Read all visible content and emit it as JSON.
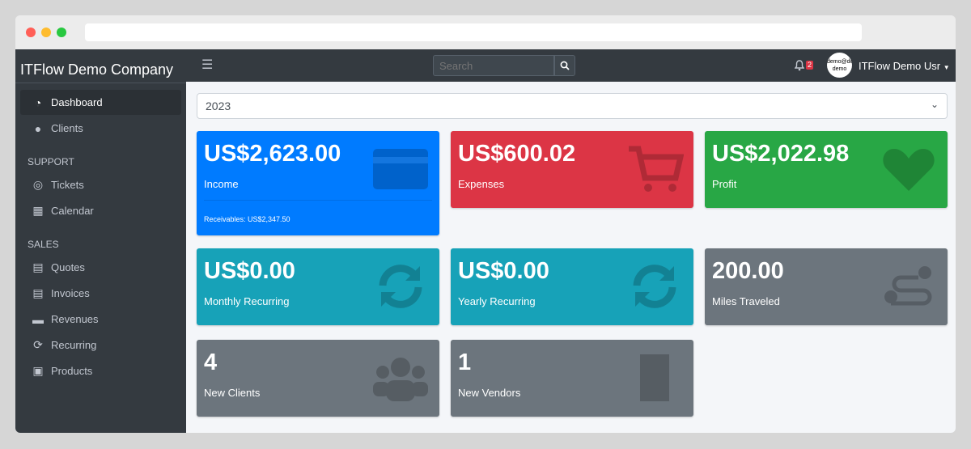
{
  "app": {
    "company": "ITFlow Demo Company"
  },
  "sidebar": {
    "items": [
      {
        "label": "Dashboard",
        "icon": "tachometer-icon",
        "active": true
      },
      {
        "label": "Clients",
        "icon": "users-icon"
      }
    ],
    "support_header": "SUPPORT",
    "support": [
      {
        "label": "Tickets",
        "icon": "life-ring-icon"
      },
      {
        "label": "Calendar",
        "icon": "calendar-icon"
      }
    ],
    "sales_header": "SALES",
    "sales": [
      {
        "label": "Quotes",
        "icon": "file-icon"
      },
      {
        "label": "Invoices",
        "icon": "invoice-icon"
      },
      {
        "label": "Revenues",
        "icon": "credit-card-icon"
      },
      {
        "label": "Recurring",
        "icon": "sync-icon"
      },
      {
        "label": "Products",
        "icon": "box-icon"
      }
    ]
  },
  "topbar": {
    "search_placeholder": "Search",
    "notifications": "2",
    "avatar_text": "demo@demo demo",
    "user": "ITFlow Demo Usr"
  },
  "year": "2023",
  "cards": [
    {
      "value": "US$2,623.00",
      "label": "Income",
      "footer": "Receivables: US$2,347.50",
      "color": "#007bff"
    },
    {
      "value": "US$600.02",
      "label": "Expenses",
      "color": "#dc3545"
    },
    {
      "value": "US$2,022.98",
      "label": "Profit",
      "color": "#28a745"
    },
    {
      "value": "US$0.00",
      "label": "Monthly Recurring",
      "color": "#17a2b8"
    },
    {
      "value": "US$0.00",
      "label": "Yearly Recurring",
      "color": "#17a2b8"
    },
    {
      "value": "200.00",
      "label": "Miles Traveled",
      "color": "#6c757d"
    },
    {
      "value": "4",
      "label": "New Clients",
      "color": "#6c757d"
    },
    {
      "value": "1",
      "label": "New Vendors",
      "color": "#6c757d"
    }
  ]
}
